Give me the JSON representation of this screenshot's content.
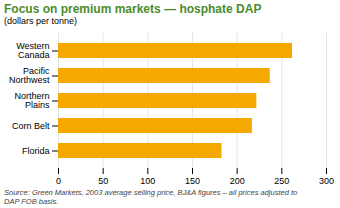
{
  "chart_data": {
    "type": "bar",
    "orientation": "horizontal",
    "title": "Focus on premium markets — hosphate DAP",
    "title_color": "#4a8c2a",
    "subtitle": "(dollars per tonne)",
    "source": "Source: Green Markets, 2003 average selling price, BJ&A figures – all prices adjusted to\nDAP FOB basis.",
    "categories": [
      "Western\nCanada",
      "Pacific\nNorthwest",
      "Northern\nPlains",
      "Corn Belt",
      "Florida"
    ],
    "values": [
      262,
      237,
      222,
      217,
      183
    ],
    "color": "#F5A800",
    "xlim": [
      0,
      300
    ],
    "xticks": [
      0,
      50,
      100,
      150,
      200,
      250,
      300
    ],
    "grid": true
  }
}
